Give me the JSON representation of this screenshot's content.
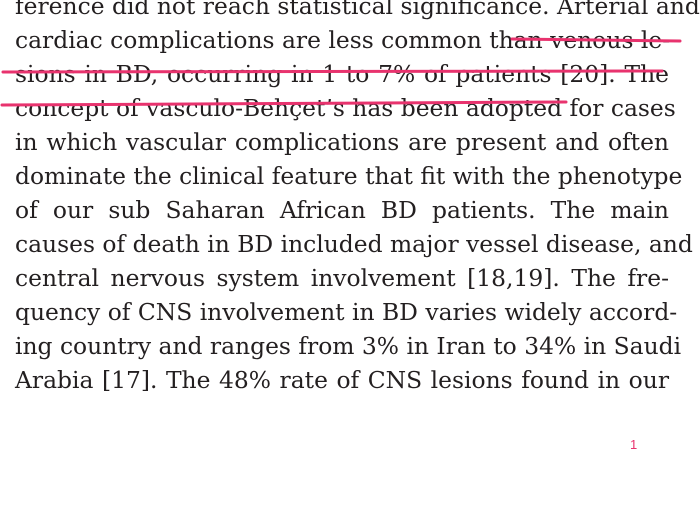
{
  "document": {
    "lines": [
      "ference did not reach statistical significance. Arterial and",
      "cardiac complications are less common than venous le-",
      "sions in BD, occurring in 1 to 7% of patients [20]. The",
      "concept of vasculo-Behçet’s has been adopted for cases",
      "in which vascular complications are present and often",
      "dominate the clinical feature that fit with the phenotype",
      "of our sub Saharan African BD patients. The main",
      "causes of death in BD included major vessel disease, and",
      "central nervous system involvement [18,19]. The fre-",
      "quency of CNS involvement in BD varies widely accord-",
      "ing country and ranges from 3% in Iran to 34% in Saudi",
      "Arabia [17]. The 48% rate of CNS lesions found in our"
    ],
    "page_marker": "1"
  },
  "colors": {
    "text": "#231f20",
    "annotation": "#e8336e"
  }
}
